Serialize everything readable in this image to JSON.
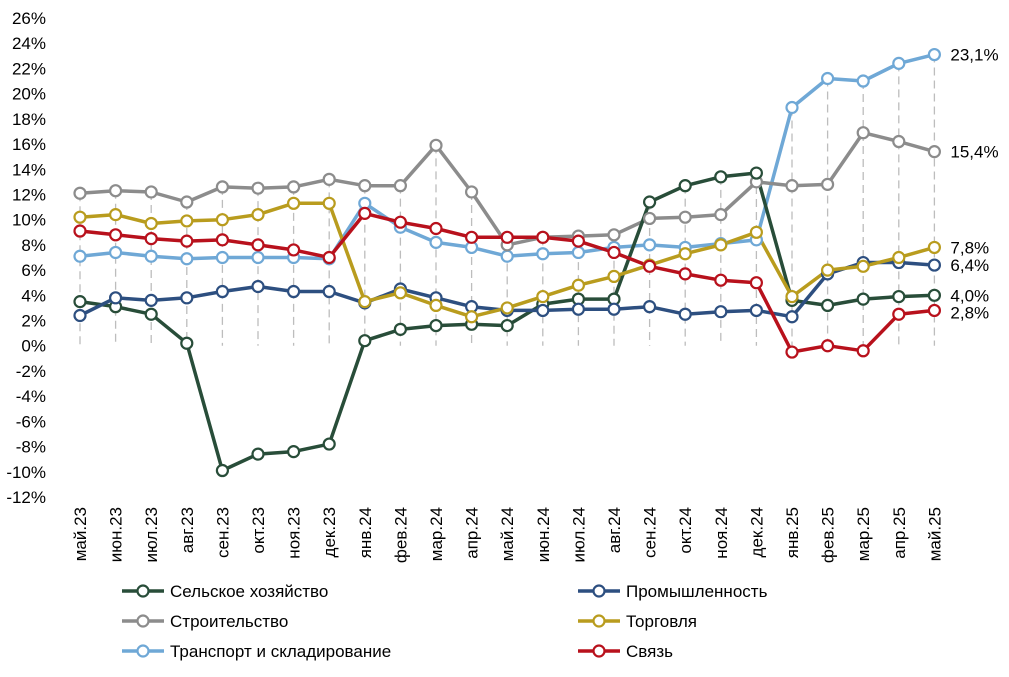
{
  "chart_data": {
    "type": "line",
    "title": "",
    "xlabel": "",
    "ylabel": "",
    "ylim": [
      -12,
      26
    ],
    "y_ticks": [
      "26%",
      "24%",
      "22%",
      "20%",
      "18%",
      "16%",
      "14%",
      "12%",
      "10%",
      "8%",
      "6%",
      "4%",
      "2%",
      "0%",
      "-2%",
      "-4%",
      "-6%",
      "-8%",
      "-10%",
      "-12%"
    ],
    "categories": [
      "май.23",
      "июн.23",
      "июл.23",
      "авг.23",
      "сен.23",
      "окт.23",
      "ноя.23",
      "дек.23",
      "янв.24",
      "фев.24",
      "мар.24",
      "апр.24",
      "май.24",
      "июн.24",
      "июл.24",
      "авг.24",
      "сен.24",
      "окт.24",
      "ноя.24",
      "дек.24",
      "янв.25",
      "фев.25",
      "мар.25",
      "апр.25",
      "май.25"
    ],
    "grid": "vertical dashed drop lines to 0%",
    "legend_position": "bottom",
    "series": [
      {
        "name": "Транспорт и складирование",
        "color": "#6fa8d6",
        "values": [
          7.1,
          7.4,
          7.1,
          6.9,
          7.0,
          7.0,
          7.0,
          6.9,
          11.3,
          9.4,
          8.2,
          7.8,
          7.1,
          7.3,
          7.4,
          7.8,
          8.0,
          7.8,
          8.1,
          8.4,
          18.9,
          21.2,
          21.0,
          22.4,
          23.1
        ]
      },
      {
        "name": "Строительство",
        "color": "#8c8c8c",
        "values": [
          12.1,
          12.3,
          12.2,
          11.4,
          12.6,
          12.5,
          12.6,
          13.2,
          12.7,
          12.7,
          15.9,
          12.2,
          8.0,
          8.6,
          8.7,
          8.8,
          10.1,
          10.2,
          10.4,
          13.0,
          12.7,
          12.8,
          16.9,
          16.2,
          15.4
        ]
      },
      {
        "name": "Сельское хозяйство",
        "color": "#284d39",
        "values": [
          3.5,
          3.1,
          2.5,
          0.2,
          -9.9,
          -8.6,
          -8.4,
          -7.8,
          0.4,
          1.3,
          1.6,
          1.7,
          1.6,
          3.3,
          3.7,
          3.7,
          11.4,
          12.7,
          13.4,
          13.7,
          3.6,
          3.2,
          3.7,
          3.9,
          4.0
        ]
      },
      {
        "name": "Промышленность",
        "color": "#2d4f80",
        "values": [
          2.4,
          3.8,
          3.6,
          3.8,
          4.3,
          4.7,
          4.3,
          4.3,
          3.4,
          4.5,
          3.8,
          3.1,
          2.8,
          2.8,
          2.9,
          2.9,
          3.1,
          2.5,
          2.7,
          2.8,
          2.3,
          5.7,
          6.6,
          6.6,
          6.4
        ]
      },
      {
        "name": "Торговля",
        "color": "#b99c1e",
        "values": [
          10.2,
          10.4,
          9.7,
          9.9,
          10.0,
          10.4,
          11.3,
          11.3,
          3.5,
          4.2,
          3.2,
          2.3,
          3.0,
          3.9,
          4.8,
          5.5,
          6.4,
          7.3,
          8.0,
          9.0,
          3.9,
          6.0,
          6.3,
          7.0,
          7.8
        ]
      },
      {
        "name": "Связь",
        "color": "#b8111c",
        "values": [
          9.1,
          8.8,
          8.5,
          8.3,
          8.4,
          8.0,
          7.6,
          7.0,
          10.5,
          9.8,
          9.3,
          8.6,
          8.6,
          8.6,
          8.3,
          7.4,
          6.3,
          5.7,
          5.2,
          5.0,
          -0.5,
          0.0,
          -0.4,
          2.5,
          2.8
        ]
      }
    ],
    "end_labels": [
      {
        "series": 0,
        "text": "23,1%"
      },
      {
        "series": 1,
        "text": "15,4%"
      },
      {
        "series": 4,
        "text": "7,8%"
      },
      {
        "series": 3,
        "text": "6,4%"
      },
      {
        "series": 2,
        "text": "4,0%"
      },
      {
        "series": 5,
        "text": "2,8%"
      }
    ],
    "legend": [
      {
        "series": 2,
        "label": "Сельское хозяйство"
      },
      {
        "series": 3,
        "label": "Промышленность"
      },
      {
        "series": 1,
        "label": "Строительство"
      },
      {
        "series": 4,
        "label": "Торговля"
      },
      {
        "series": 0,
        "label": "Транспорт и складирование"
      },
      {
        "series": 5,
        "label": "Связь"
      }
    ]
  }
}
